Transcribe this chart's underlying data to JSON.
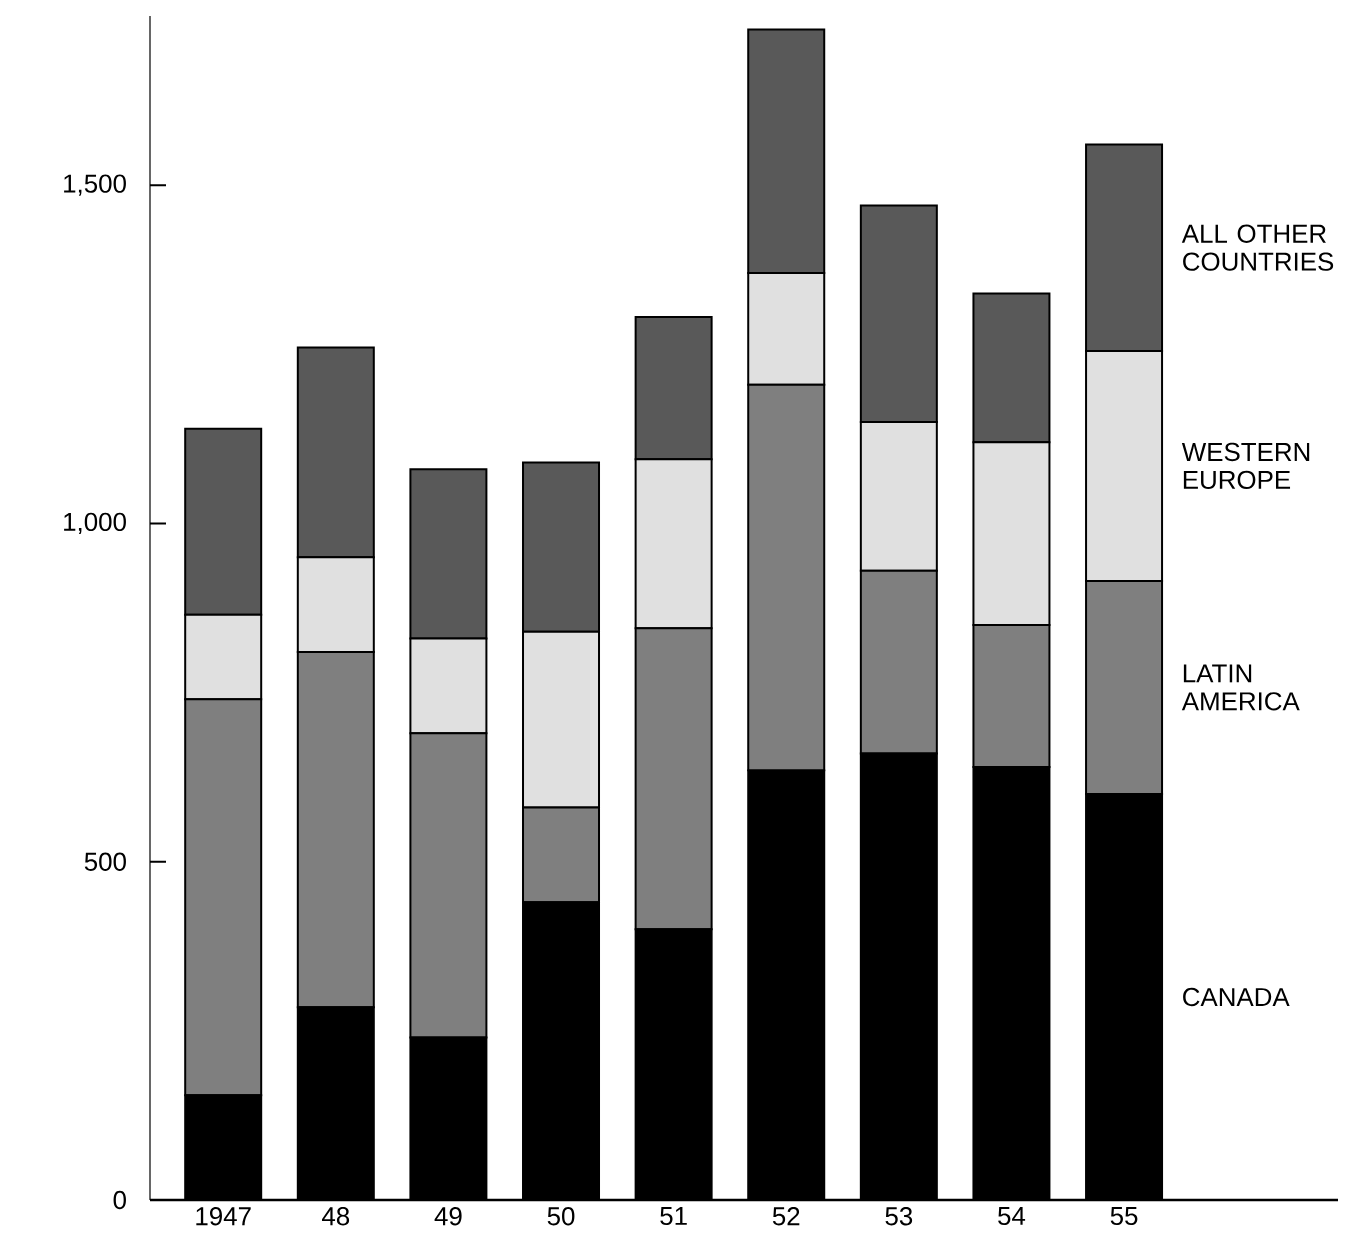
{
  "chart_data": {
    "type": "bar",
    "stacked": true,
    "categories": [
      "1947",
      "48",
      "49",
      "50",
      "51",
      "52",
      "53",
      "54",
      "55"
    ],
    "series": [
      {
        "name": "CANADA",
        "color": "#000000",
        "values": [
          155,
          285,
          240,
          440,
          400,
          635,
          660,
          640,
          600
        ]
      },
      {
        "name": "LATIN AMERICA",
        "color": "#7f7f7f",
        "values": [
          585,
          525,
          450,
          140,
          445,
          570,
          270,
          210,
          315
        ]
      },
      {
        "name": "WESTERN EUROPE",
        "color": "#e0e0e0",
        "values": [
          125,
          140,
          140,
          260,
          250,
          165,
          220,
          270,
          340
        ]
      },
      {
        "name": "ALL OTHER COUNTRIES",
        "color": "#595959",
        "values": [
          275,
          310,
          250,
          250,
          210,
          360,
          320,
          220,
          305
        ]
      }
    ],
    "ylim": [
      0,
      1750
    ],
    "yticks": [
      0,
      500,
      {
        "value": 1000,
        "label": "1,000"
      },
      {
        "value": 1500,
        "label": "1,500"
      }
    ],
    "grid": false,
    "legend": false
  }
}
